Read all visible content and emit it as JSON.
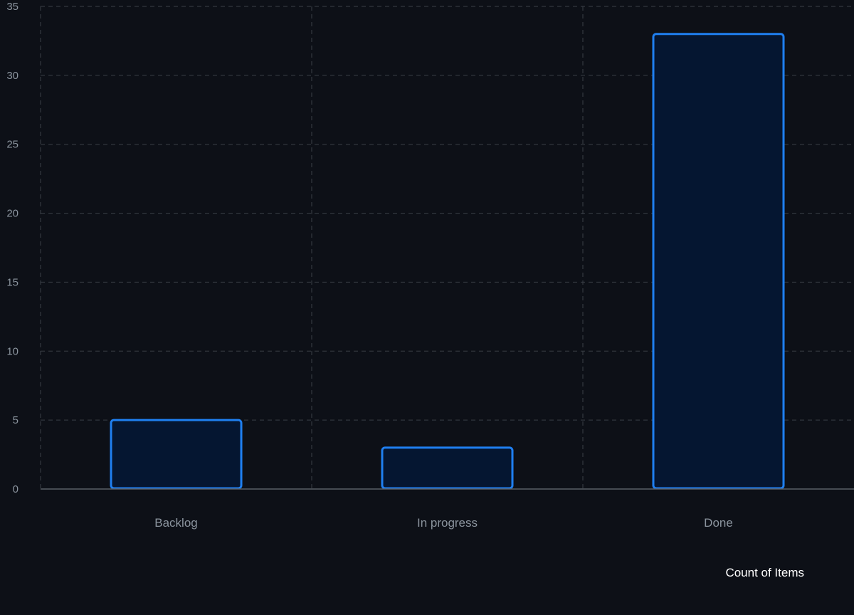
{
  "chart_data": {
    "type": "bar",
    "categories": [
      "Backlog",
      "In progress",
      "Done"
    ],
    "series": [
      {
        "name": "Count of Items",
        "values": [
          5,
          3,
          33
        ]
      }
    ],
    "ylim": [
      0,
      35
    ],
    "yticks": [
      0,
      5,
      10,
      15,
      20,
      25,
      30,
      35
    ],
    "grid": true,
    "legend_position": "bottom-right",
    "colors": {
      "background": "#0d1017",
      "bar_fill": "#051631",
      "bar_stroke": "#1f7ff0",
      "grid": "#3a3f47",
      "axis": "#5a5f66",
      "tick_text": "#8b949e",
      "legend_text": "#ffffff"
    }
  }
}
